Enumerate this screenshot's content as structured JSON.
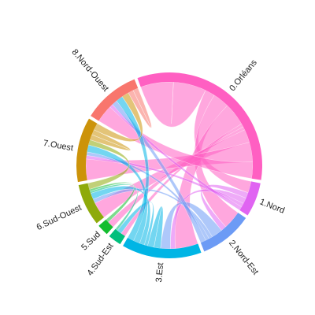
{
  "chart_data": {
    "type": "chord",
    "sectors": [
      {
        "name": "0.Orléans",
        "color": "#FF5FC2",
        "size": 100
      },
      {
        "name": "1.Nord",
        "color": "#E064F2",
        "size": 18
      },
      {
        "name": "2.Nord-Est",
        "color": "#6C9BF5",
        "size": 28
      },
      {
        "name": "3.Est",
        "color": "#00B5E5",
        "size": 42
      },
      {
        "name": "4.Sud-Est",
        "color": "#00BF7D",
        "size": 7
      },
      {
        "name": "5.Sud",
        "color": "#13BD2F",
        "size": 6
      },
      {
        "name": "6.Sud-Ouest",
        "color": "#8EAA0A",
        "size": 22
      },
      {
        "name": "7.Ouest",
        "color": "#CC930A",
        "size": 34
      },
      {
        "name": "8.Nord-Ouest",
        "color": "#F8766D",
        "size": 30
      }
    ],
    "flows": [
      {
        "from": 0,
        "to": 0,
        "value": 20
      },
      {
        "from": 0,
        "to": 1,
        "value": 6
      },
      {
        "from": 0,
        "to": 2,
        "value": 10
      },
      {
        "from": 0,
        "to": 3,
        "value": 14
      },
      {
        "from": 0,
        "to": 4,
        "value": 2
      },
      {
        "from": 0,
        "to": 5,
        "value": 2
      },
      {
        "from": 0,
        "to": 6,
        "value": 8
      },
      {
        "from": 0,
        "to": 7,
        "value": 12
      },
      {
        "from": 0,
        "to": 8,
        "value": 10
      },
      {
        "from": 1,
        "to": 2,
        "value": 3
      },
      {
        "from": 1,
        "to": 3,
        "value": 3
      },
      {
        "from": 1,
        "to": 7,
        "value": 2
      },
      {
        "from": 1,
        "to": 8,
        "value": 2
      },
      {
        "from": 2,
        "to": 3,
        "value": 6
      },
      {
        "from": 2,
        "to": 6,
        "value": 2
      },
      {
        "from": 2,
        "to": 7,
        "value": 2
      },
      {
        "from": 2,
        "to": 8,
        "value": 3
      },
      {
        "from": 3,
        "to": 3,
        "value": 4
      },
      {
        "from": 3,
        "to": 4,
        "value": 2
      },
      {
        "from": 3,
        "to": 6,
        "value": 3
      },
      {
        "from": 3,
        "to": 7,
        "value": 4
      },
      {
        "from": 3,
        "to": 8,
        "value": 4
      },
      {
        "from": 4,
        "to": 6,
        "value": 1
      },
      {
        "from": 5,
        "to": 6,
        "value": 1
      },
      {
        "from": 6,
        "to": 7,
        "value": 3
      },
      {
        "from": 7,
        "to": 7,
        "value": 3
      },
      {
        "from": 7,
        "to": 8,
        "value": 4
      },
      {
        "from": 8,
        "to": 8,
        "value": 3
      }
    ]
  }
}
